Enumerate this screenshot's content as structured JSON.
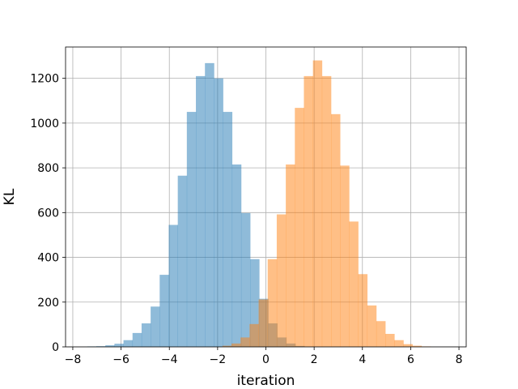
{
  "chart_data": {
    "type": "histogram",
    "title": "",
    "xlabel": "iteration",
    "ylabel": "KL",
    "xlim": [
      -8.3,
      8.3
    ],
    "ylim": [
      0,
      1340
    ],
    "xticks": [
      -8,
      -6,
      -4,
      -2,
      0,
      2,
      4,
      6,
      8
    ],
    "xtick_labels": [
      "−8",
      "−6",
      "−4",
      "−2",
      "0",
      "2",
      "4",
      "6",
      "8"
    ],
    "yticks": [
      0,
      200,
      400,
      600,
      800,
      1000,
      1200
    ],
    "ytick_labels": [
      "0",
      "200",
      "400",
      "600",
      "800",
      "1000",
      "1200"
    ],
    "grid": true,
    "bin_width": 0.375,
    "series": [
      {
        "color": "#1f77b4",
        "opacity": 0.5,
        "bin_start": -7.4,
        "counts": [
          2,
          3,
          7,
          14,
          30,
          62,
          105,
          180,
          322,
          545,
          765,
          1050,
          1210,
          1268,
          1200,
          1050,
          815,
          598,
          392,
          215,
          105,
          42,
          15,
          4
        ]
      },
      {
        "color": "#ff7f0e",
        "opacity": 0.5,
        "bin_start": -1.8,
        "counts": [
          5,
          15,
          42,
          102,
          212,
          392,
          592,
          815,
          1068,
          1210,
          1280,
          1210,
          1040,
          810,
          560,
          325,
          185,
          115,
          58,
          30,
          12,
          5,
          2
        ]
      }
    ]
  }
}
